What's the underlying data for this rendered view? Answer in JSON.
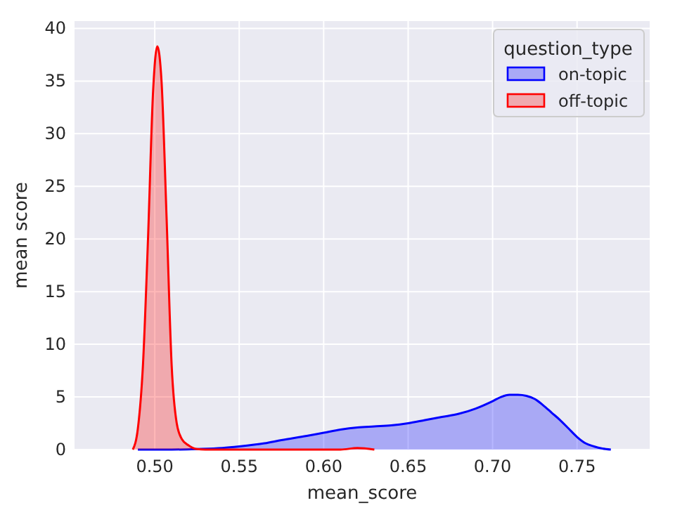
{
  "chart_data": {
    "type": "area",
    "xlabel": "mean_score",
    "ylabel": "mean score",
    "legend_title": "question_type",
    "xlim": [
      0.4525,
      0.793
    ],
    "ylim": [
      0,
      40.7
    ],
    "xticks": [
      {
        "value": 0.5,
        "label": "0.50"
      },
      {
        "value": 0.55,
        "label": "0.55"
      },
      {
        "value": 0.6,
        "label": "0.60"
      },
      {
        "value": 0.65,
        "label": "0.65"
      },
      {
        "value": 0.7,
        "label": "0.70"
      },
      {
        "value": 0.75,
        "label": "0.75"
      }
    ],
    "yticks": [
      0,
      5,
      10,
      15,
      20,
      25,
      30,
      35,
      40
    ],
    "grid": true,
    "legend": "top right",
    "series": [
      {
        "name": "on-topic",
        "color": "#0000ff",
        "x": [
          0.49,
          0.51,
          0.525,
          0.54,
          0.55,
          0.565,
          0.575,
          0.59,
          0.6,
          0.61,
          0.62,
          0.63,
          0.64,
          0.65,
          0.66,
          0.67,
          0.68,
          0.69,
          0.7,
          0.705,
          0.71,
          0.715,
          0.72,
          0.725,
          0.73,
          0.735,
          0.74,
          0.745,
          0.75,
          0.755,
          0.76,
          0.765,
          0.77
        ],
        "values": [
          0,
          0,
          0.05,
          0.15,
          0.3,
          0.6,
          0.9,
          1.3,
          1.6,
          1.9,
          2.1,
          2.2,
          2.3,
          2.5,
          2.8,
          3.1,
          3.4,
          3.9,
          4.6,
          5.0,
          5.2,
          5.2,
          5.1,
          4.8,
          4.2,
          3.5,
          2.8,
          2,
          1.2,
          0.6,
          0.3,
          0.1,
          0
        ]
      },
      {
        "name": "off-topic",
        "color": "#ff0000",
        "x": [
          0.487,
          0.49,
          0.493,
          0.496,
          0.499,
          0.5015,
          0.504,
          0.507,
          0.51,
          0.513,
          0.516,
          0.52,
          0.525,
          0.53,
          0.61,
          0.62,
          0.63
        ],
        "values": [
          0,
          2,
          8,
          20,
          34,
          38.3,
          35,
          22,
          8,
          2.5,
          1,
          0.4,
          0.05,
          0,
          0,
          0.15,
          0
        ]
      }
    ]
  }
}
